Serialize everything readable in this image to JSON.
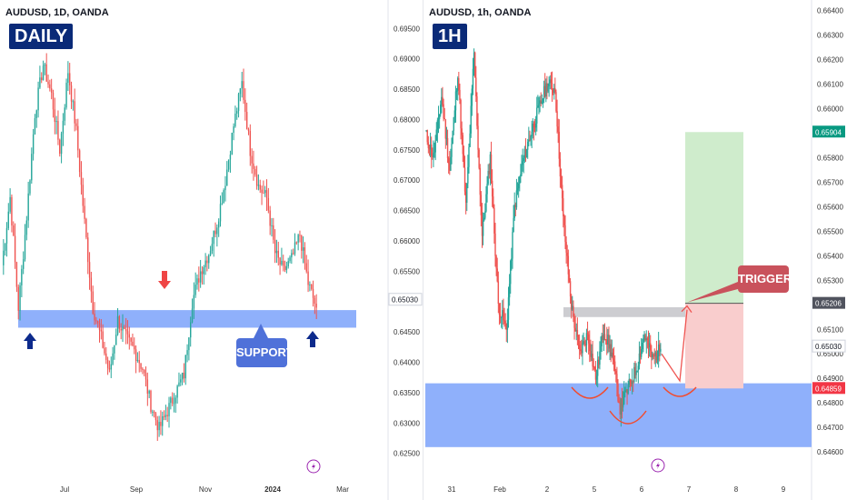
{
  "colors": {
    "up": "#26a69a",
    "down": "#ef5350",
    "support_zone": "#8fb0fb",
    "badge_bg": "#0a2a78",
    "arrow_up": "#0d2a8c",
    "arrow_down": "#ef4545",
    "support_callout": "#4f71d9",
    "trigger_callout": "#c9525c",
    "profit_zone": "#cfeccc",
    "loss_zone": "#f9cdcd",
    "resistance_zone": "#c8c8cc",
    "curve": "#f24b2e"
  },
  "icons": [
    "arrow-up-icon",
    "arrow-down-icon",
    "lightning-icon"
  ],
  "chart_data": [
    {
      "type": "candlestick",
      "symbol_label": "AUDUSD, 1D, OANDA",
      "badge": "DAILY",
      "x_ticks": [
        "Jul",
        "Sep",
        "Nov",
        "2024",
        "Mar"
      ],
      "y_ticks": [
        "0.69500",
        "0.69000",
        "0.68500",
        "0.68000",
        "0.67500",
        "0.67000",
        "0.66500",
        "0.66000",
        "0.65500",
        "0.65000",
        "0.64500",
        "0.64000",
        "0.63500",
        "0.63000",
        "0.62500"
      ],
      "ylim": [
        0.6218,
        0.697
      ],
      "price_label": "0.65030",
      "support_zone": [
        0.6457,
        0.6486
      ],
      "support_label": "SUPPORT",
      "path_points": [
        0.656,
        0.6672,
        0.649,
        0.664,
        0.681,
        0.689,
        0.684,
        0.675,
        0.688,
        0.678,
        0.663,
        0.649,
        0.644,
        0.638,
        0.647,
        0.644,
        0.642,
        0.639,
        0.633,
        0.629,
        0.632,
        0.635,
        0.638,
        0.65,
        0.655,
        0.658,
        0.663,
        0.67,
        0.679,
        0.686,
        0.675,
        0.669,
        0.667,
        0.658,
        0.655,
        0.657,
        0.661,
        0.653,
        0.649
      ]
    },
    {
      "type": "candlestick",
      "symbol_label": "AUDUSD, 1h, OANDA",
      "badge": "1H",
      "x_ticks": [
        "31",
        "Feb",
        "2",
        "5",
        "6",
        "7",
        "8",
        "9"
      ],
      "y_ticks": [
        "0.66400",
        "0.66300",
        "0.66200",
        "0.66100",
        "0.66000",
        "0.65900",
        "0.65800",
        "0.65700",
        "0.65600",
        "0.65500",
        "0.65400",
        "0.65300",
        "0.65200",
        "0.65100",
        "0.65000",
        "0.64900",
        "0.64800",
        "0.64700",
        "0.64600"
      ],
      "ylim": [
        0.6456,
        0.6642
      ],
      "price_labels": [
        {
          "value": "0.65904",
          "role": "target"
        },
        {
          "value": "0.65206",
          "role": "entry"
        },
        {
          "value": "0.65030",
          "role": "last"
        },
        {
          "value": "0.64859",
          "role": "stop"
        }
      ],
      "target": 0.65904,
      "entry": 0.65206,
      "stop": 0.64859,
      "support_zone": [
        0.6462,
        0.6488
      ],
      "resistance_zone": [
        0.6515,
        0.6519
      ],
      "trigger_label": "TRIGGER",
      "path_points": [
        0.659,
        0.658,
        0.6605,
        0.6575,
        0.6615,
        0.656,
        0.6622,
        0.6548,
        0.658,
        0.652,
        0.651,
        0.656,
        0.6578,
        0.659,
        0.66,
        0.661,
        0.6608,
        0.6555,
        0.652,
        0.65,
        0.6508,
        0.649,
        0.651,
        0.65,
        0.6478,
        0.6486,
        0.6494,
        0.6508,
        0.6498,
        0.6502
      ]
    }
  ]
}
